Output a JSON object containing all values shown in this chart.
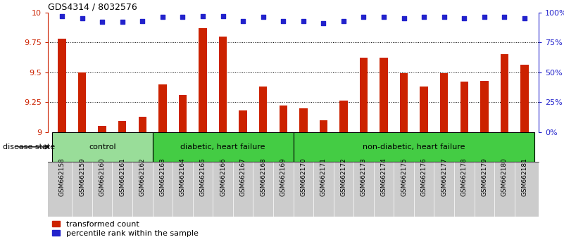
{
  "title": "GDS4314 / 8032576",
  "samples": [
    "GSM662158",
    "GSM662159",
    "GSM662160",
    "GSM662161",
    "GSM662162",
    "GSM662163",
    "GSM662164",
    "GSM662165",
    "GSM662166",
    "GSM662167",
    "GSM662168",
    "GSM662169",
    "GSM662170",
    "GSM662171",
    "GSM662172",
    "GSM662173",
    "GSM662174",
    "GSM662175",
    "GSM662176",
    "GSM662177",
    "GSM662178",
    "GSM662179",
    "GSM662180",
    "GSM662181"
  ],
  "bar_values": [
    9.78,
    9.5,
    9.05,
    9.09,
    9.13,
    9.4,
    9.31,
    9.87,
    9.8,
    9.18,
    9.38,
    9.22,
    9.2,
    9.1,
    9.26,
    9.62,
    9.62,
    9.49,
    9.38,
    9.49,
    9.42,
    9.43,
    9.65,
    9.56
  ],
  "percentile_values": [
    97,
    95,
    92,
    92,
    93,
    96,
    96,
    97,
    97,
    93,
    96,
    93,
    93,
    91,
    93,
    96,
    96,
    95,
    96,
    96,
    95,
    96,
    96,
    95
  ],
  "bar_color": "#cc2200",
  "percentile_color": "#2222cc",
  "ylim_left": [
    9.0,
    10.0
  ],
  "ylim_right": [
    0,
    100
  ],
  "yticks_left": [
    9.0,
    9.25,
    9.5,
    9.75,
    10.0
  ],
  "ytick_labels_left": [
    "9",
    "9.25",
    "9.5",
    "9.75",
    "10"
  ],
  "yticks_right": [
    0,
    25,
    50,
    75,
    100
  ],
  "ytick_labels_right": [
    "0%",
    "25%",
    "50%",
    "75%",
    "100%"
  ],
  "group_configs": [
    {
      "label": "control",
      "start": 0,
      "end": 4,
      "color": "#99dd99"
    },
    {
      "label": "diabetic, heart failure",
      "start": 5,
      "end": 11,
      "color": "#44cc44"
    },
    {
      "label": "non-diabetic, heart failure",
      "start": 12,
      "end": 23,
      "color": "#44cc44"
    }
  ],
  "disease_state_label": "disease state",
  "legend_bar_label": "transformed count",
  "legend_pct_label": "percentile rank within the sample",
  "tick_area_color": "#cccccc",
  "bar_width": 0.4
}
